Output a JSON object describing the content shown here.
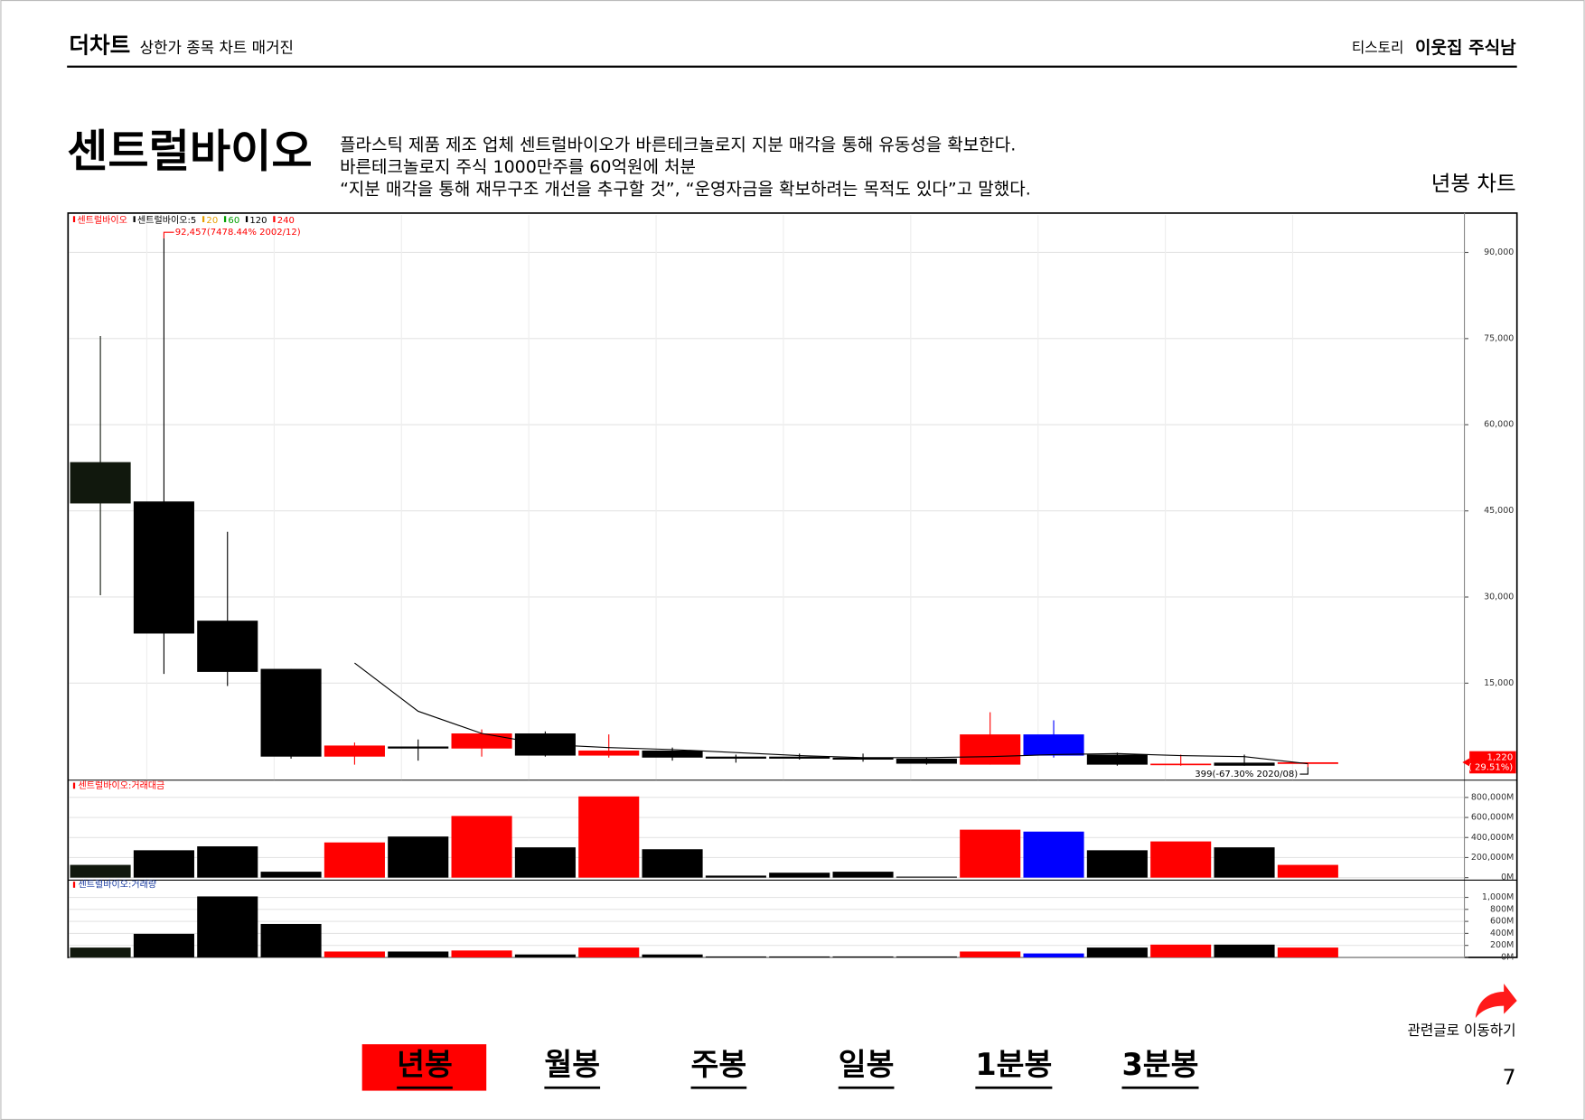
{
  "header": {
    "brand": "더차트",
    "tagline": "상한가 종목 차트 매거진",
    "site": "티스토리",
    "author": "이웃집 주식남"
  },
  "title": "센트럴바이오",
  "description": [
    "플라스틱 제품 제조 업체 센트럴바이오가 바른테크놀로지 지분 매각을 통해 유동성을 확보한다.",
    "바른테크놀로지 주식 1000만주를 60억원에 처분",
    "“지분 매각을 통해 재무구조 개선을 추구할 것”, “운영자금을 확보하려는 목적도 있다”고 말했다."
  ],
  "chart_label": "년봉 차트",
  "chart_data": [
    {
      "type": "candlestick",
      "categories": [
        null,
        null,
        null,
        null,
        null,
        null,
        null,
        null,
        null,
        null,
        null,
        null,
        null,
        null,
        null,
        null,
        null,
        null,
        null,
        null
      ],
      "open": [
        53490,
        46640,
        25880,
        17490,
        2210,
        3970,
        3620,
        6250,
        2390,
        3270,
        2210,
        2210,
        2040,
        1860,
        810,
        6080,
        2560,
        810,
        1160,
        942
      ],
      "high": [
        75450,
        92457,
        41370,
        17490,
        4670,
        5200,
        6950,
        6600,
        6080,
        3790,
        2560,
        2740,
        2740,
        2040,
        9940,
        8540,
        2910,
        2560,
        2560,
        1220
      ],
      "low": [
        30310,
        16610,
        14500,
        1860,
        810,
        1510,
        2210,
        2210,
        2040,
        1510,
        1160,
        1690,
        1330,
        810,
        810,
        2040,
        630,
        630,
        630,
        399
      ],
      "close": [
        46290,
        23640,
        16960,
        2210,
        4140,
        3620,
        6250,
        2390,
        3270,
        2040,
        1860,
        1860,
        1690,
        980,
        6080,
        2390,
        810,
        980,
        630,
        1220
      ],
      "colors": [
        "#11180d",
        "#000000",
        "#000000",
        "#000000",
        "#ff0000",
        "#000000",
        "#ff0000",
        "#000000",
        "#ff0000",
        "#000000",
        "#000000",
        "#000000",
        "#000000",
        "#000000",
        "#ff0000",
        "#0000ff",
        "#000000",
        "#ff0000",
        "#000000",
        "#ff0000"
      ],
      "ma": {
        "name": "센트럴바이오:5",
        "color": "#000000",
        "values": [
          null,
          null,
          null,
          null,
          18500,
          10110,
          6250,
          4320,
          3790,
          3440,
          2910,
          2390,
          2040,
          2040,
          2210,
          2560,
          2740,
          2390,
          2210,
          980
        ]
      },
      "legend": [
        {
          "label": "센트럴바이오",
          "color": "#ff0000"
        },
        {
          "label": "센트럴바이오:5",
          "color": "#000000"
        },
        {
          "label": "20",
          "color": "#e8a000"
        },
        {
          "label": "60",
          "color": "#00a000"
        },
        {
          "label": "120",
          "color": "#000000"
        },
        {
          "label": "240",
          "color": "#ff0000"
        }
      ],
      "high_note": "92,457(7478.44% 2002/12)",
      "low_note": "399(-67.30% 2020/08)",
      "last_label": "1,220",
      "last_change": "( 29.51%)",
      "ylim": [
        -1800,
        96500
      ],
      "yticks": [
        {
          "value": 15000,
          "label": "15,000"
        },
        {
          "value": 30000,
          "label": "30,000"
        },
        {
          "value": 45000,
          "label": "45,000"
        },
        {
          "value": 60000,
          "label": "60,000"
        },
        {
          "value": 75000,
          "label": "75,000"
        },
        {
          "value": 90000,
          "label": "90,000"
        }
      ],
      "grid": true
    },
    {
      "type": "bar",
      "title": "센트럴바이오:거래대금",
      "values": [
        127,
        273,
        312,
        59,
        351,
        410,
        615,
        302,
        810,
        283,
        20,
        49,
        59,
        10,
        478,
        459,
        273,
        361,
        302,
        127
      ],
      "colors": [
        "#11180d",
        "#000000",
        "#000000",
        "#000000",
        "#ff0000",
        "#000000",
        "#ff0000",
        "#000000",
        "#ff0000",
        "#000000",
        "#000000",
        "#000000",
        "#000000",
        "#000000",
        "#ff0000",
        "#0000ff",
        "#000000",
        "#ff0000",
        "#000000",
        "#ff0000"
      ],
      "ylim": [
        0,
        937
      ],
      "yticks": [
        {
          "value": 0,
          "label": "0M"
        },
        {
          "value": 200,
          "label": "200,000M"
        },
        {
          "value": 400,
          "label": "400,000M"
        },
        {
          "value": 600,
          "label": "600,000M"
        },
        {
          "value": 800,
          "label": "800,000M"
        }
      ],
      "grid": true
    },
    {
      "type": "bar",
      "title": "센트럴바이오:거래량",
      "values": [
        164,
        393,
        1016,
        557,
        98,
        98,
        115,
        49,
        164,
        49,
        16,
        16,
        16,
        16,
        98,
        66,
        164,
        213,
        213,
        164
      ],
      "colors": [
        "#11180d",
        "#000000",
        "#000000",
        "#000000",
        "#ff0000",
        "#000000",
        "#ff0000",
        "#000000",
        "#ff0000",
        "#000000",
        "#000000",
        "#000000",
        "#000000",
        "#000000",
        "#ff0000",
        "#0000ff",
        "#000000",
        "#ff0000",
        "#000000",
        "#ff0000"
      ],
      "ylim": [
        0,
        1245
      ],
      "yticks": [
        {
          "value": 0,
          "label": "0M"
        },
        {
          "value": 200,
          "label": "200M"
        },
        {
          "value": 400,
          "label": "400M"
        },
        {
          "value": 600,
          "label": "600M"
        },
        {
          "value": 800,
          "label": "800M"
        },
        {
          "value": 1000,
          "label": "1,000M"
        }
      ],
      "grid": true
    }
  ],
  "nav": [
    "년봉",
    "월봉",
    "주봉",
    "일봉",
    "1분봉",
    "3분봉"
  ],
  "related": "관련글로 이동하기",
  "page_number": "7"
}
